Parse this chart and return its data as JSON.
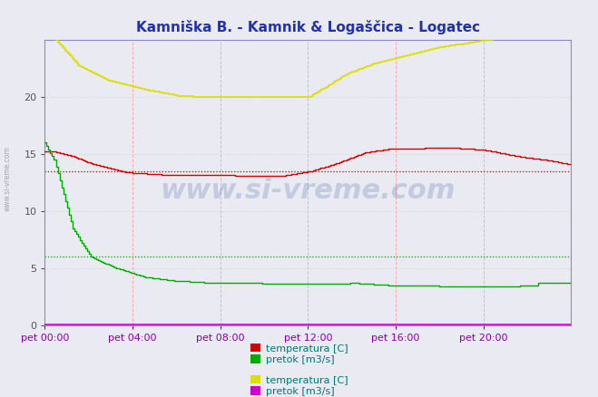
{
  "title": "Kamniška B. - Kamnik & Logaščica - Logatec",
  "title_color": "#2233aa",
  "bg_color": "#eaeaf2",
  "plot_bg_color": "#eaeaf2",
  "xlim": [
    0,
    288
  ],
  "ylim": [
    0,
    25
  ],
  "yticks": [
    0,
    5,
    10,
    15,
    20
  ],
  "xtick_labels": [
    "pet 00:00",
    "pet 04:00",
    "pet 08:00",
    "pet 12:00",
    "pet 16:00",
    "pet 20:00"
  ],
  "xtick_positions": [
    0,
    48,
    96,
    144,
    192,
    240
  ],
  "xtick_color": "#8800aa",
  "ytick_color": "#555555",
  "watermark": "www.si-vreme.com",
  "watermark_color": "#1a3a8a",
  "watermark_alpha": 0.18,
  "dotted_red_y": 13.5,
  "dotted_green_y": 6.0,
  "color_red": "#cc0000",
  "color_green": "#00aa00",
  "color_yellow": "#dddd00",
  "color_magenta": "#cc00cc",
  "legend_label_color": "#007777",
  "legend_font": 8,
  "left_label": "www.si-vreme.com",
  "spine_color": "#8888cc",
  "vgrid_color": "#ffaaaa",
  "hgrid_color": "#ddcccc",
  "arrow_right_color": "#cc0000",
  "arrow_up_color": "#aa00aa"
}
